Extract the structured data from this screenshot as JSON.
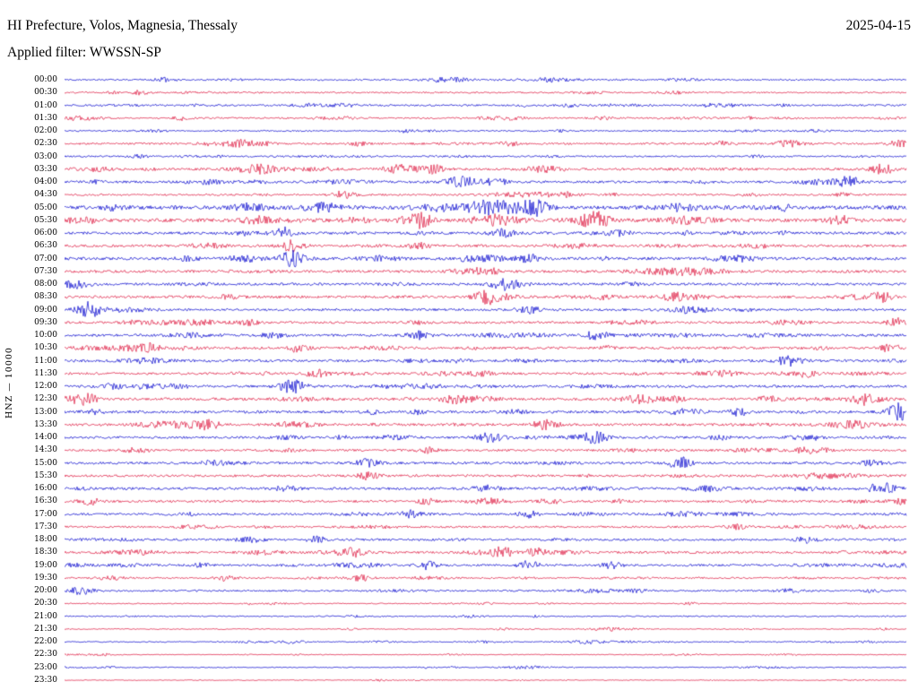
{
  "header": {
    "title": "HI Prefecture, Volos, Magnesia, Thessaly",
    "date": "2025-04-15",
    "filter": "Applied filter: WWSSN-SP"
  },
  "axis": {
    "channel_label": "HNZ — 10000"
  },
  "chart_data": {
    "type": "line",
    "subtype": "helicorder-seismogram",
    "title": "HI Prefecture, Volos, Magnesia, Thessaly",
    "date": "2025-04-15",
    "applied_filter": "WWSSN-SP",
    "channel": "HNZ",
    "gain_scale": "10000",
    "row_interval_minutes": 30,
    "xlabel": "",
    "ylabel": "HNZ — 10000",
    "legend": "none",
    "grid": false,
    "colors": {
      "blue": "#0000cd",
      "red": "#dc143c"
    },
    "rows": [
      {
        "time": "00:00",
        "color": "blue",
        "amp": 0.9
      },
      {
        "time": "00:30",
        "color": "red",
        "amp": 0.9
      },
      {
        "time": "01:00",
        "color": "blue",
        "amp": 1.0
      },
      {
        "time": "01:30",
        "color": "red",
        "amp": 0.9
      },
      {
        "time": "02:00",
        "color": "blue",
        "amp": 0.8
      },
      {
        "time": "02:30",
        "color": "red",
        "amp": 1.1
      },
      {
        "time": "03:00",
        "color": "blue",
        "amp": 0.9
      },
      {
        "time": "03:30",
        "color": "red",
        "amp": 1.3
      },
      {
        "time": "04:00",
        "color": "blue",
        "amp": 1.3
      },
      {
        "time": "04:30",
        "color": "red",
        "amp": 1.1
      },
      {
        "time": "05:00",
        "color": "blue",
        "amp": 2.1
      },
      {
        "time": "05:30",
        "color": "red",
        "amp": 1.9
      },
      {
        "time": "06:00",
        "color": "blue",
        "amp": 1.5
      },
      {
        "time": "06:30",
        "color": "red",
        "amp": 1.4
      },
      {
        "time": "07:00",
        "color": "blue",
        "amp": 1.6
      },
      {
        "time": "07:30",
        "color": "red",
        "amp": 1.5
      },
      {
        "time": "08:00",
        "color": "blue",
        "amp": 1.4
      },
      {
        "time": "08:30",
        "color": "red",
        "amp": 1.5
      },
      {
        "time": "09:00",
        "color": "blue",
        "amp": 1.3
      },
      {
        "time": "09:30",
        "color": "red",
        "amp": 1.3
      },
      {
        "time": "10:00",
        "color": "blue",
        "amp": 1.4
      },
      {
        "time": "10:30",
        "color": "red",
        "amp": 1.4
      },
      {
        "time": "11:00",
        "color": "blue",
        "amp": 1.4
      },
      {
        "time": "11:30",
        "color": "red",
        "amp": 1.3
      },
      {
        "time": "12:00",
        "color": "blue",
        "amp": 1.4
      },
      {
        "time": "12:30",
        "color": "red",
        "amp": 1.5
      },
      {
        "time": "13:00",
        "color": "blue",
        "amp": 1.5
      },
      {
        "time": "13:30",
        "color": "red",
        "amp": 1.4
      },
      {
        "time": "14:00",
        "color": "blue",
        "amp": 1.3
      },
      {
        "time": "14:30",
        "color": "red",
        "amp": 1.2
      },
      {
        "time": "15:00",
        "color": "blue",
        "amp": 1.4
      },
      {
        "time": "15:30",
        "color": "red",
        "amp": 1.3
      },
      {
        "time": "16:00",
        "color": "blue",
        "amp": 1.4
      },
      {
        "time": "16:30",
        "color": "red",
        "amp": 1.3
      },
      {
        "time": "17:00",
        "color": "blue",
        "amp": 1.2
      },
      {
        "time": "17:30",
        "color": "red",
        "amp": 1.1
      },
      {
        "time": "18:00",
        "color": "blue",
        "amp": 1.2
      },
      {
        "time": "18:30",
        "color": "red",
        "amp": 1.3
      },
      {
        "time": "19:00",
        "color": "blue",
        "amp": 1.2
      },
      {
        "time": "19:30",
        "color": "red",
        "amp": 0.9
      },
      {
        "time": "20:00",
        "color": "blue",
        "amp": 1.0
      },
      {
        "time": "20:30",
        "color": "red",
        "amp": 0.6
      },
      {
        "time": "21:00",
        "color": "blue",
        "amp": 0.7
      },
      {
        "time": "21:30",
        "color": "red",
        "amp": 0.55
      },
      {
        "time": "22:00",
        "color": "blue",
        "amp": 0.65
      },
      {
        "time": "22:30",
        "color": "red",
        "amp": 0.45
      },
      {
        "time": "23:00",
        "color": "blue",
        "amp": 0.55
      },
      {
        "time": "23:30",
        "color": "red",
        "amp": 0.45
      }
    ],
    "events": [
      {
        "row": 0,
        "x": 0.12,
        "gain": 2.5,
        "width": 8
      },
      {
        "row": 1,
        "x": 0.09,
        "gain": 2.5,
        "width": 7
      },
      {
        "row": 2,
        "x": 0.6,
        "gain": 2.0,
        "width": 8
      },
      {
        "row": 3,
        "x": 0.14,
        "gain": 2.5,
        "width": 7
      },
      {
        "row": 5,
        "x": 0.21,
        "gain": 3.5,
        "width": 12
      },
      {
        "row": 5,
        "x": 0.86,
        "gain": 3.5,
        "width": 10
      },
      {
        "row": 5,
        "x": 0.99,
        "gain": 3.0,
        "width": 8
      },
      {
        "row": 6,
        "x": 0.09,
        "gain": 2.5,
        "width": 7
      },
      {
        "row": 7,
        "x": 0.4,
        "gain": 3.5,
        "width": 14
      },
      {
        "row": 7,
        "x": 0.44,
        "gain": 4.0,
        "width": 9
      },
      {
        "row": 7,
        "x": 0.97,
        "gain": 4.0,
        "width": 10
      },
      {
        "row": 8,
        "x": 0.47,
        "gain": 5.0,
        "width": 11
      },
      {
        "row": 8,
        "x": 0.51,
        "gain": 3.5,
        "width": 9
      },
      {
        "row": 8,
        "x": 0.93,
        "gain": 5.0,
        "width": 9
      },
      {
        "row": 9,
        "x": 0.33,
        "gain": 3.5,
        "width": 9
      },
      {
        "row": 9,
        "x": 0.6,
        "gain": 2.5,
        "width": 8
      },
      {
        "row": 10,
        "x": 0.5,
        "gain": 3.0,
        "width": 16
      },
      {
        "row": 10,
        "x": 0.56,
        "gain": 3.0,
        "width": 9
      },
      {
        "row": 11,
        "x": 0.42,
        "gain": 4.5,
        "width": 12
      },
      {
        "row": 11,
        "x": 0.63,
        "gain": 3.0,
        "width": 9
      },
      {
        "row": 11,
        "x": 0.92,
        "gain": 2.5,
        "width": 9
      },
      {
        "row": 12,
        "x": 0.26,
        "gain": 4.0,
        "width": 8
      },
      {
        "row": 12,
        "x": 0.52,
        "gain": 3.0,
        "width": 9
      },
      {
        "row": 13,
        "x": 0.27,
        "gain": 4.5,
        "width": 9
      },
      {
        "row": 13,
        "x": 0.42,
        "gain": 2.5,
        "width": 8
      },
      {
        "row": 14,
        "x": 0.27,
        "gain": 5.5,
        "width": 9
      },
      {
        "row": 14,
        "x": 0.55,
        "gain": 3.0,
        "width": 8
      },
      {
        "row": 15,
        "x": 0.5,
        "gain": 3.5,
        "width": 9
      },
      {
        "row": 16,
        "x": 0.52,
        "gain": 4.0,
        "width": 10
      },
      {
        "row": 17,
        "x": 0.5,
        "gain": 4.0,
        "width": 9
      },
      {
        "row": 17,
        "x": 0.97,
        "gain": 3.0,
        "width": 8
      },
      {
        "row": 18,
        "x": 0.03,
        "gain": 3.5,
        "width": 8
      },
      {
        "row": 18,
        "x": 0.55,
        "gain": 3.0,
        "width": 9
      },
      {
        "row": 19,
        "x": 0.22,
        "gain": 2.5,
        "width": 8
      },
      {
        "row": 19,
        "x": 0.99,
        "gain": 3.0,
        "width": 7
      },
      {
        "row": 20,
        "x": 0.42,
        "gain": 3.0,
        "width": 9
      },
      {
        "row": 20,
        "x": 0.63,
        "gain": 3.5,
        "width": 9
      },
      {
        "row": 21,
        "x": 0.1,
        "gain": 3.5,
        "width": 9
      },
      {
        "row": 21,
        "x": 0.98,
        "gain": 3.0,
        "width": 8
      },
      {
        "row": 22,
        "x": 0.86,
        "gain": 4.0,
        "width": 10
      },
      {
        "row": 23,
        "x": 0.3,
        "gain": 3.0,
        "width": 9
      },
      {
        "row": 23,
        "x": 0.88,
        "gain": 3.0,
        "width": 9
      },
      {
        "row": 24,
        "x": 0.27,
        "gain": 5.0,
        "width": 10
      },
      {
        "row": 25,
        "x": 0.02,
        "gain": 4.0,
        "width": 9
      },
      {
        "row": 25,
        "x": 0.46,
        "gain": 3.0,
        "width": 9
      },
      {
        "row": 25,
        "x": 0.95,
        "gain": 4.0,
        "width": 12
      },
      {
        "row": 26,
        "x": 0.8,
        "gain": 2.5,
        "width": 8
      },
      {
        "row": 26,
        "x": 0.99,
        "gain": 5.0,
        "width": 9
      },
      {
        "row": 27,
        "x": 0.17,
        "gain": 3.0,
        "width": 9
      },
      {
        "row": 27,
        "x": 0.57,
        "gain": 4.0,
        "width": 9
      },
      {
        "row": 28,
        "x": 0.5,
        "gain": 3.0,
        "width": 9
      },
      {
        "row": 28,
        "x": 0.63,
        "gain": 3.0,
        "width": 8
      },
      {
        "row": 29,
        "x": 0.43,
        "gain": 2.5,
        "width": 8
      },
      {
        "row": 29,
        "x": 0.88,
        "gain": 3.0,
        "width": 9
      },
      {
        "row": 30,
        "x": 0.36,
        "gain": 3.0,
        "width": 9
      },
      {
        "row": 30,
        "x": 0.73,
        "gain": 3.0,
        "width": 8
      },
      {
        "row": 31,
        "x": 0.36,
        "gain": 3.0,
        "width": 8
      },
      {
        "row": 32,
        "x": 0.5,
        "gain": 3.0,
        "width": 9
      },
      {
        "row": 32,
        "x": 0.97,
        "gain": 3.0,
        "width": 8
      },
      {
        "row": 33,
        "x": 0.03,
        "gain": 3.0,
        "width": 8
      },
      {
        "row": 33,
        "x": 0.43,
        "gain": 3.0,
        "width": 8
      },
      {
        "row": 34,
        "x": 0.41,
        "gain": 3.0,
        "width": 8
      },
      {
        "row": 34,
        "x": 0.55,
        "gain": 3.0,
        "width": 8
      },
      {
        "row": 35,
        "x": 0.8,
        "gain": 3.0,
        "width": 9
      },
      {
        "row": 36,
        "x": 0.3,
        "gain": 3.0,
        "width": 8
      },
      {
        "row": 36,
        "x": 0.88,
        "gain": 3.0,
        "width": 8
      },
      {
        "row": 37,
        "x": 0.52,
        "gain": 4.0,
        "width": 9
      },
      {
        "row": 37,
        "x": 0.56,
        "gain": 3.5,
        "width": 8
      },
      {
        "row": 38,
        "x": 0.43,
        "gain": 4.0,
        "width": 8
      },
      {
        "row": 38,
        "x": 0.55,
        "gain": 4.0,
        "width": 8
      },
      {
        "row": 38,
        "x": 0.65,
        "gain": 3.0,
        "width": 8
      },
      {
        "row": 39,
        "x": 0.19,
        "gain": 3.5,
        "width": 8
      },
      {
        "row": 39,
        "x": 0.35,
        "gain": 3.0,
        "width": 8
      },
      {
        "row": 40,
        "x": 0.02,
        "gain": 4.5,
        "width": 9
      },
      {
        "row": 44,
        "x": 0.27,
        "gain": 3.0,
        "width": 8
      }
    ]
  }
}
